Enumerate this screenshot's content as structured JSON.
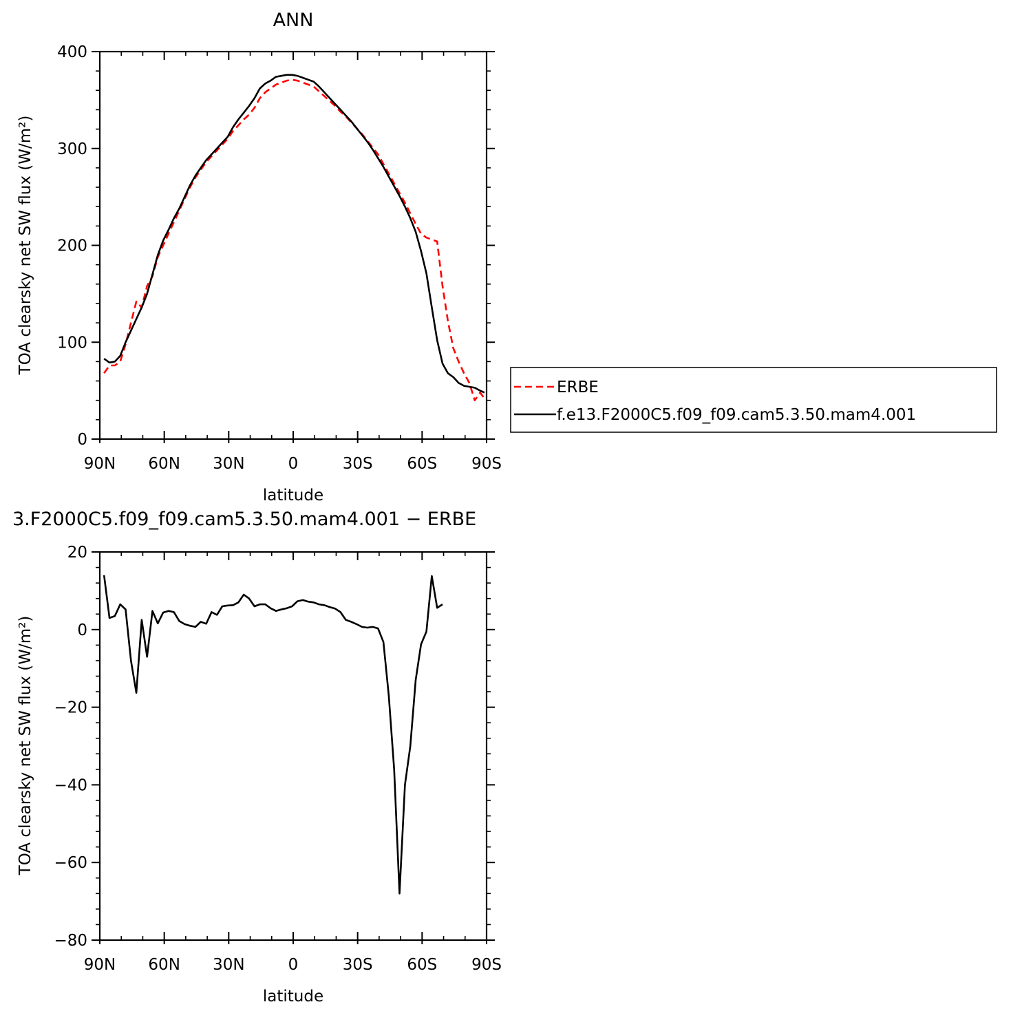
{
  "chart_data": [
    {
      "type": "line",
      "title": "ANN",
      "xlabel": "latitude",
      "ylabel": "TOA clearsky net SW flux (W/m²)",
      "xlim": [
        90,
        -90
      ],
      "ylim": [
        0,
        400
      ],
      "xticks": [
        90,
        60,
        30,
        0,
        -30,
        -60,
        -90
      ],
      "xtick_labels": [
        "90N",
        "60N",
        "30N",
        "0",
        "30S",
        "60S",
        "90S"
      ],
      "yticks": [
        0,
        100,
        200,
        300,
        400
      ],
      "ytick_labels": [
        "0",
        "100",
        "200",
        "300",
        "400"
      ],
      "legend_position": "right",
      "series": [
        {
          "name": "ERBE",
          "color": "#ff0000",
          "dash": true,
          "points": [
            [
              88,
              68
            ],
            [
              85.5,
              76
            ],
            [
              83,
              76
            ],
            [
              80.5,
              80
            ],
            [
              78,
              98
            ],
            [
              75.5,
              120
            ],
            [
              73,
              142
            ],
            [
              70.5,
              136
            ],
            [
              68,
              158
            ],
            [
              65.5,
              168
            ],
            [
              63,
              188
            ],
            [
              60.5,
              200
            ],
            [
              58,
              212
            ],
            [
              55.5,
              224
            ],
            [
              53,
              236
            ],
            [
              50.5,
              248
            ],
            [
              48,
              260
            ],
            [
              45.5,
              270
            ],
            [
              43,
              278
            ],
            [
              40.5,
              286
            ],
            [
              38,
              292
            ],
            [
              35.5,
              298
            ],
            [
              33,
              304
            ],
            [
              30.5,
              310
            ],
            [
              28,
              318
            ],
            [
              25.5,
              324
            ],
            [
              23,
              330
            ],
            [
              20.5,
              335
            ],
            [
              18,
              342
            ],
            [
              15.5,
              352
            ],
            [
              13,
              358
            ],
            [
              10.5,
              362
            ],
            [
              8,
              366
            ],
            [
              5.5,
              368
            ],
            [
              3,
              370
            ],
            [
              0.5,
              371
            ],
            [
              -2,
              370
            ],
            [
              -4.5,
              368
            ],
            [
              -7,
              366
            ],
            [
              -9.5,
              364
            ],
            [
              -12,
              359
            ],
            [
              -14.5,
              354
            ],
            [
              -17,
              349
            ],
            [
              -19.5,
              344
            ],
            [
              -22,
              338
            ],
            [
              -24.5,
              333
            ],
            [
              -27,
              327
            ],
            [
              -29.5,
              321
            ],
            [
              -32,
              315
            ],
            [
              -34.5,
              308
            ],
            [
              -37,
              301
            ],
            [
              -39.5,
              294
            ],
            [
              -42,
              284
            ],
            [
              -44.5,
              274
            ],
            [
              -47,
              264
            ],
            [
              -49.5,
              254
            ],
            [
              -52,
              244
            ],
            [
              -54.5,
              233
            ],
            [
              -57,
              222
            ],
            [
              -59.5,
              212
            ],
            [
              -62,
              208
            ],
            [
              -64.5,
              206
            ],
            [
              -67,
              204
            ],
            [
              -69.5,
              158
            ],
            [
              -72,
              122
            ],
            [
              -74.5,
              94
            ],
            [
              -77,
              80
            ],
            [
              -79.5,
              68
            ],
            [
              -82,
              58
            ],
            [
              -84.5,
              40
            ],
            [
              -87,
              48
            ],
            [
              -89,
              42
            ]
          ]
        },
        {
          "name": "f.e13.F2000C5.f09_f09.cam5.3.50.mam4.001",
          "color": "#000000",
          "dash": false,
          "points": [
            [
              88,
              83
            ],
            [
              85.5,
              79
            ],
            [
              83,
              80
            ],
            [
              80.5,
              86
            ],
            [
              78,
              100
            ],
            [
              75.5,
              112
            ],
            [
              73,
              124
            ],
            [
              70.5,
              136
            ],
            [
              68,
              150
            ],
            [
              65.5,
              170
            ],
            [
              63,
              190
            ],
            [
              60.5,
              205
            ],
            [
              58,
              216
            ],
            [
              55.5,
              228
            ],
            [
              53,
              238
            ],
            [
              50.5,
              250
            ],
            [
              48,
              262
            ],
            [
              45.5,
              272
            ],
            [
              43,
              280
            ],
            [
              40.5,
              288
            ],
            [
              38,
              294
            ],
            [
              35.5,
              300
            ],
            [
              33,
              306
            ],
            [
              30.5,
              312
            ],
            [
              28,
              322
            ],
            [
              25.5,
              330
            ],
            [
              23,
              337
            ],
            [
              20.5,
              344
            ],
            [
              18,
              352
            ],
            [
              15.5,
              362
            ],
            [
              13,
              367
            ],
            [
              10.5,
              370
            ],
            [
              8,
              374
            ],
            [
              5.5,
              375
            ],
            [
              3,
              376
            ],
            [
              0.5,
              376
            ],
            [
              -2,
              375
            ],
            [
              -4.5,
              373
            ],
            [
              -7,
              371
            ],
            [
              -9.5,
              369
            ],
            [
              -12,
              364
            ],
            [
              -14.5,
              358
            ],
            [
              -17,
              352
            ],
            [
              -19.5,
              346
            ],
            [
              -22,
              340
            ],
            [
              -24.5,
              334
            ],
            [
              -27,
              328
            ],
            [
              -29.5,
              321
            ],
            [
              -32,
              314
            ],
            [
              -34.5,
              307
            ],
            [
              -37,
              299
            ],
            [
              -39.5,
              290
            ],
            [
              -42,
              281
            ],
            [
              -44.5,
              271
            ],
            [
              -47,
              261
            ],
            [
              -49.5,
              251
            ],
            [
              -52,
              240
            ],
            [
              -54.5,
              228
            ],
            [
              -57,
              214
            ],
            [
              -59.5,
              194
            ],
            [
              -62,
              171
            ],
            [
              -64.5,
              136
            ],
            [
              -67,
              102
            ],
            [
              -69.5,
              78
            ],
            [
              -72,
              68
            ],
            [
              -74.5,
              64
            ],
            [
              -77,
              58
            ],
            [
              -79.5,
              55
            ],
            [
              -82,
              54
            ],
            [
              -84.5,
              53
            ],
            [
              -87,
              50
            ],
            [
              -89,
              48
            ]
          ]
        }
      ]
    },
    {
      "type": "line",
      "title": "3.F2000C5.f09_f09.cam5.3.50.mam4.001 − ERBE",
      "xlabel": "latitude",
      "ylabel": "TOA clearsky net SW flux (W/m²)",
      "xlim": [
        90,
        -90
      ],
      "ylim": [
        -80,
        20
      ],
      "xticks": [
        90,
        60,
        30,
        0,
        -30,
        -60,
        -90
      ],
      "xtick_labels": [
        "90N",
        "60N",
        "30N",
        "0",
        "30S",
        "60S",
        "90S"
      ],
      "yticks": [
        -80,
        -60,
        -40,
        -20,
        0,
        20
      ],
      "ytick_labels": [
        "−80",
        "−60",
        "−40",
        "−20",
        "0",
        "20"
      ],
      "series": [
        {
          "color": "#000000",
          "dash": false,
          "points": [
            [
              88,
              14
            ],
            [
              85.5,
              3
            ],
            [
              83,
              3.5
            ],
            [
              80.5,
              6.5
            ],
            [
              78,
              5.2
            ],
            [
              75.5,
              -8
            ],
            [
              73,
              -16.3
            ],
            [
              70.5,
              2.5
            ],
            [
              68,
              -7
            ],
            [
              65.5,
              4.8
            ],
            [
              63,
              1.6
            ],
            [
              60.5,
              4.4
            ],
            [
              58,
              4.8
            ],
            [
              55.5,
              4.5
            ],
            [
              53,
              2.2
            ],
            [
              50.5,
              1.4
            ],
            [
              48,
              1.0
            ],
            [
              45.5,
              0.7
            ],
            [
              43,
              2.0
            ],
            [
              40.5,
              1.5
            ],
            [
              38,
              4.5
            ],
            [
              35.5,
              3.8
            ],
            [
              33,
              6.0
            ],
            [
              30.5,
              6.2
            ],
            [
              28,
              6.3
            ],
            [
              25.5,
              7.0
            ],
            [
              23,
              9.0
            ],
            [
              20.5,
              8.0
            ],
            [
              18,
              6.0
            ],
            [
              15.5,
              6.5
            ],
            [
              13,
              6.5
            ],
            [
              10.5,
              5.5
            ],
            [
              8,
              4.8
            ],
            [
              5.5,
              5.2
            ],
            [
              3,
              5.5
            ],
            [
              0.5,
              6.0
            ],
            [
              -2,
              7.3
            ],
            [
              -4.5,
              7.6
            ],
            [
              -7,
              7.2
            ],
            [
              -9.5,
              7.0
            ],
            [
              -12,
              6.5
            ],
            [
              -14.5,
              6.3
            ],
            [
              -17,
              5.8
            ],
            [
              -19.5,
              5.4
            ],
            [
              -22,
              4.5
            ],
            [
              -24.5,
              2.5
            ],
            [
              -27,
              2.0
            ],
            [
              -29.5,
              1.4
            ],
            [
              -32,
              0.7
            ],
            [
              -34.5,
              0.5
            ],
            [
              -37,
              0.7
            ],
            [
              -39.5,
              0.3
            ],
            [
              -42,
              -3.2
            ],
            [
              -44.5,
              -17
            ],
            [
              -47,
              -36
            ],
            [
              -49.5,
              -68
            ],
            [
              -52,
              -40
            ],
            [
              -54.5,
              -30
            ],
            [
              -57,
              -13
            ],
            [
              -59.5,
              -3.8
            ],
            [
              -62,
              -0.5
            ],
            [
              -64.5,
              13.8
            ],
            [
              -67,
              5.6
            ],
            [
              -69.5,
              6.5
            ]
          ]
        }
      ]
    }
  ]
}
